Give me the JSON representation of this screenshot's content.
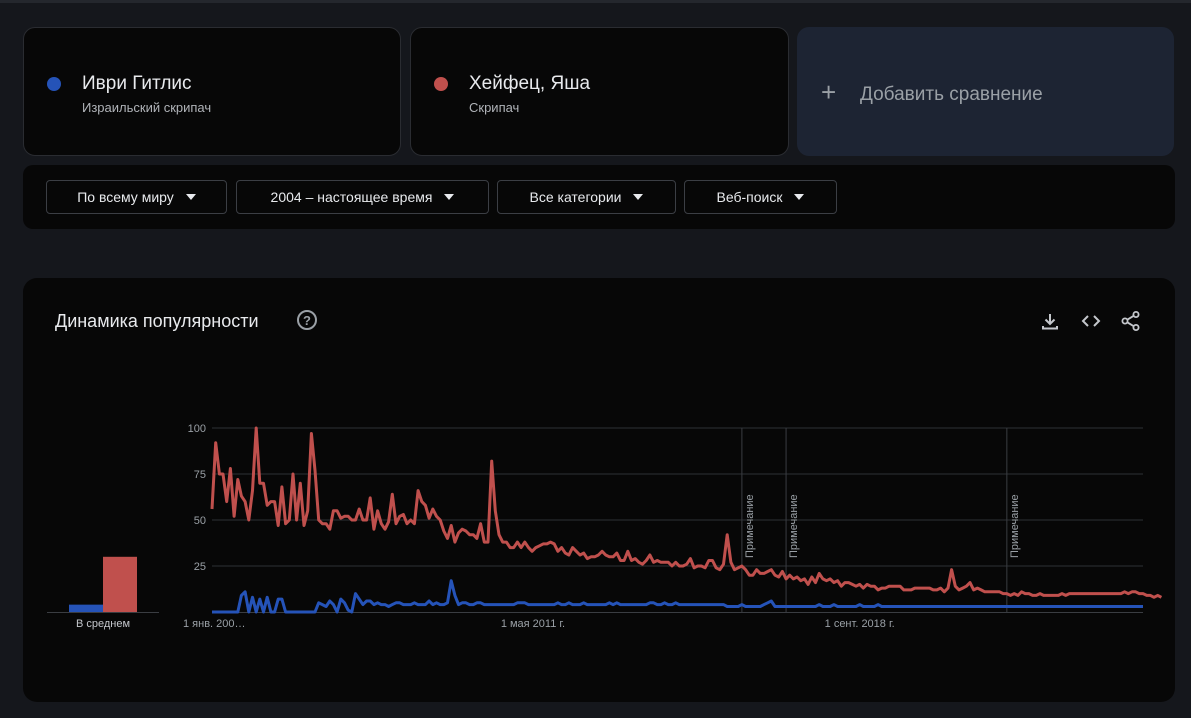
{
  "terms": [
    {
      "name": "Иври Гитлис",
      "description": "Израильский скрипач",
      "color": "#2553b8"
    },
    {
      "name": "Хейфец, Яша",
      "description": "Скрипач",
      "color": "#c0504d"
    }
  ],
  "add_comparison": {
    "icon": "plus-icon",
    "label": "Добавить сравнение"
  },
  "filters": [
    {
      "label": "По всему миру"
    },
    {
      "label": "2004 – настоящее время"
    },
    {
      "label": "Все категории"
    },
    {
      "label": "Веб-поиск"
    }
  ],
  "chart": {
    "title": "Динамика популярности",
    "help_icon": "?",
    "toolbar": [
      "download-icon",
      "embed-code-icon",
      "share-icon"
    ]
  },
  "chart_data": {
    "type": "line",
    "ylim": [
      0,
      100
    ],
    "y_ticks": [
      "100",
      "75",
      "50",
      "25"
    ],
    "x_tick_labels": [
      {
        "label": "1 янв. 200…",
        "month_index": 0
      },
      {
        "label": "1 мая 2011 г.",
        "month_index": 88
      },
      {
        "label": "1 сент. 2018 г.",
        "month_index": 176
      }
    ],
    "annotations": [
      {
        "label": "Примечание",
        "month_index": 144
      },
      {
        "label": "Примечание",
        "month_index": 156
      },
      {
        "label": "Примечание",
        "month_index": 216
      }
    ],
    "averages": {
      "label": "В среднем",
      "values": [
        {
          "series": "Иври Гитлис",
          "value": 4
        },
        {
          "series": "Хейфец, Яша",
          "value": 30
        }
      ]
    },
    "grid": true,
    "legend": "none",
    "x_start": "2004-01",
    "series": [
      {
        "name": "Иври Гитлис",
        "color": "#2553b8",
        "values": [
          0,
          0,
          0,
          0,
          0,
          0,
          0,
          0,
          9,
          11,
          0,
          8,
          0,
          7,
          0,
          8,
          0,
          0,
          7,
          7,
          0,
          0,
          0,
          0,
          0,
          0,
          0,
          0,
          0,
          5,
          4,
          3,
          6,
          4,
          0,
          7,
          5,
          1,
          0,
          10,
          7,
          4,
          6,
          6,
          4,
          5,
          4,
          4,
          3,
          4,
          5,
          5,
          4,
          4,
          4,
          5,
          4,
          4,
          4,
          6,
          4,
          5,
          4,
          4,
          5,
          17,
          9,
          4,
          5,
          5,
          4,
          4,
          5,
          5,
          4,
          4,
          4,
          4,
          4,
          4,
          4,
          4,
          4,
          5,
          5,
          5,
          4,
          4,
          4,
          4,
          4,
          4,
          4,
          4,
          5,
          4,
          4,
          5,
          4,
          4,
          4,
          5,
          4,
          4,
          4,
          4,
          4,
          4,
          5,
          4,
          5,
          4,
          4,
          4,
          4,
          4,
          4,
          4,
          4,
          5,
          5,
          4,
          4,
          5,
          4,
          4,
          5,
          4,
          4,
          4,
          4,
          4,
          4,
          4,
          4,
          4,
          4,
          4,
          4,
          4,
          3,
          3,
          3,
          3,
          4,
          3,
          3,
          3,
          3,
          3,
          4,
          5,
          6,
          3,
          3,
          3,
          3,
          3,
          3,
          3,
          3,
          3,
          3,
          3,
          3,
          4,
          3,
          3,
          3,
          4,
          3,
          3,
          3,
          3,
          3,
          3,
          4,
          3,
          3,
          3,
          3,
          4,
          3,
          3,
          3,
          3,
          3,
          3,
          3,
          3,
          3,
          3,
          3,
          3,
          3,
          3,
          3,
          3,
          3,
          3,
          3,
          3,
          3,
          3,
          3,
          3,
          3,
          3,
          3,
          3,
          3,
          3,
          3,
          3,
          3,
          3,
          3,
          3,
          3,
          3,
          3,
          3,
          3,
          3,
          3,
          3,
          3,
          3,
          3,
          3,
          3,
          3,
          3,
          3,
          3,
          3,
          3,
          3,
          3,
          3,
          3,
          3,
          3,
          3,
          3,
          3,
          3,
          3,
          3,
          3,
          3,
          3,
          3,
          3
        ]
      },
      {
        "name": "Хейфец, Яша",
        "color": "#c0504d",
        "values": [
          56,
          92,
          75,
          75,
          60,
          78,
          52,
          72,
          63,
          60,
          50,
          66,
          100,
          70,
          70,
          58,
          60,
          60,
          47,
          68,
          48,
          50,
          75,
          50,
          70,
          47,
          55,
          97,
          77,
          50,
          48,
          48,
          45,
          55,
          55,
          51,
          52,
          52,
          50,
          50,
          56,
          50,
          50,
          62,
          45,
          55,
          48,
          45,
          49,
          64,
          48,
          52,
          53,
          48,
          50,
          48,
          66,
          60,
          58,
          51,
          56,
          52,
          50,
          44,
          40,
          47,
          38,
          43,
          45,
          44,
          42,
          42,
          40,
          48,
          38,
          38,
          82,
          55,
          42,
          38,
          38,
          35,
          35,
          38,
          35,
          38,
          35,
          33,
          35,
          36,
          37,
          37,
          38,
          37,
          33,
          35,
          32,
          31,
          35,
          33,
          31,
          32,
          29,
          30,
          30,
          31,
          33,
          31,
          30,
          30,
          32,
          28,
          28,
          33,
          28,
          29,
          27,
          26,
          28,
          31,
          27,
          28,
          27,
          27,
          27,
          25,
          27,
          25,
          25,
          26,
          29,
          24,
          25,
          25,
          24,
          28,
          28,
          24,
          23,
          26,
          42,
          27,
          23,
          24,
          25,
          23,
          20,
          20,
          23,
          21,
          21,
          22,
          23,
          20,
          19,
          22,
          18,
          20,
          18,
          19,
          17,
          18,
          15,
          19,
          16,
          21,
          18,
          17,
          18,
          16,
          17,
          14,
          16,
          16,
          15,
          14,
          15,
          13,
          15,
          14,
          14,
          12,
          13,
          13,
          14,
          14,
          14,
          14,
          12,
          12,
          12,
          13,
          13,
          13,
          13,
          13,
          12,
          12,
          13,
          11,
          13,
          23,
          14,
          12,
          13,
          14,
          16,
          12,
          13,
          12,
          11,
          11,
          11,
          11,
          11,
          10,
          10,
          9,
          10,
          9,
          11,
          10,
          10,
          9,
          9,
          10,
          9,
          9,
          9,
          9,
          9,
          10,
          9,
          10,
          10,
          10,
          10,
          10,
          10,
          10,
          10,
          10,
          10,
          10,
          10,
          10,
          10,
          10,
          11,
          10,
          11,
          11,
          10,
          10,
          9,
          9,
          8,
          9,
          8
        ]
      }
    ]
  }
}
